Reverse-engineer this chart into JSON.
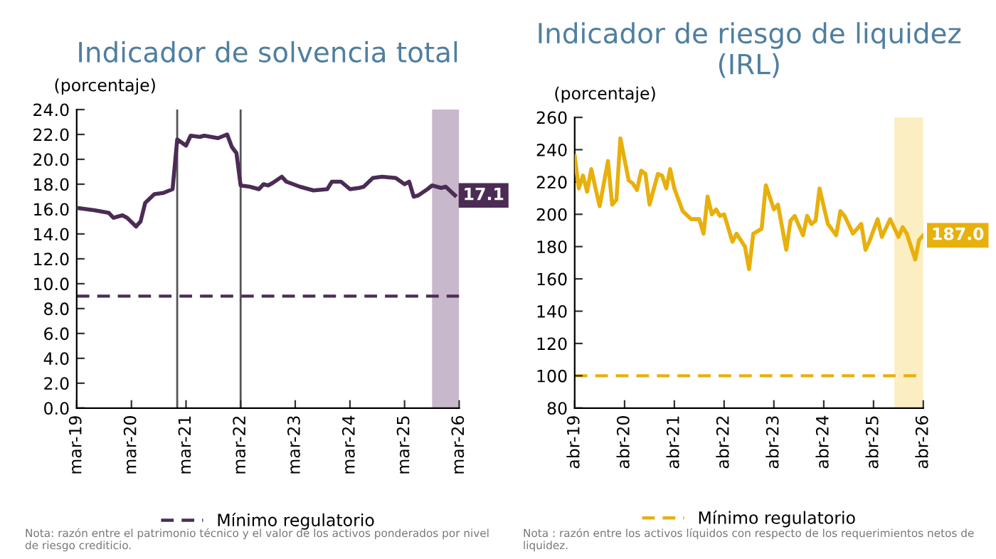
{
  "chart_data": [
    {
      "type": "line",
      "title": "Indicador de solvencia total",
      "ylabel": "(porcentaje)",
      "x": [
        "2019-03",
        "2019-07",
        "2019-10",
        "2019-11",
        "2020-01",
        "2020-02",
        "2020-04",
        "2020-05",
        "2020-06",
        "2020-08",
        "2020-10",
        "2020-12",
        "2021-01",
        "2021-03",
        "2021-04",
        "2021-06",
        "2021-07",
        "2021-10",
        "2021-12",
        "2022-01",
        "2022-02",
        "2022-03",
        "2022-05",
        "2022-07",
        "2022-08",
        "2022-09",
        "2022-10",
        "2022-12",
        "2023-01",
        "2023-04",
        "2023-07",
        "2023-10",
        "2023-11",
        "2024-01",
        "2024-03",
        "2024-05",
        "2024-06",
        "2024-08",
        "2024-10",
        "2025-01",
        "2025-03",
        "2025-04",
        "2025-05",
        "2025-06",
        "2025-08",
        "2025-09",
        "2025-11",
        "2025-12",
        "2026-02"
      ],
      "series": [
        {
          "color": "#4b2c55",
          "values": [
            16.1,
            15.9,
            15.7,
            15.3,
            15.5,
            15.3,
            14.6,
            15.0,
            16.5,
            17.2,
            17.3,
            17.6,
            21.6,
            21.1,
            21.9,
            21.8,
            21.9,
            21.7,
            22.0,
            21.0,
            20.5,
            17.9,
            17.8,
            17.6,
            18.0,
            17.9,
            18.1,
            18.6,
            18.2,
            17.8,
            17.5,
            17.6,
            18.2,
            18.2,
            17.6,
            17.7,
            17.8,
            18.5,
            18.6,
            18.5,
            18.0,
            18.2,
            17.0,
            17.1,
            17.6,
            17.9,
            17.7,
            17.8,
            17.1
          ],
          "value_labels": [
            null,
            null,
            null,
            null,
            null,
            null,
            null,
            null,
            null,
            null,
            null,
            null,
            null,
            null,
            null,
            null,
            null,
            null,
            null,
            null,
            null,
            null,
            null,
            null,
            null,
            null,
            null,
            null,
            null,
            null,
            null,
            null,
            null,
            null,
            null,
            null,
            null,
            null,
            null,
            null,
            null,
            null,
            null,
            null,
            null,
            null,
            null,
            null,
            "17.1"
          ]
        }
      ],
      "xlim": [
        "2019-03",
        "2026-03"
      ],
      "xticks": [
        {
          "value": "2019-03",
          "label": "mar-19"
        },
        {
          "value": "2020-03",
          "label": "mar-20"
        },
        {
          "value": "2021-03",
          "label": "mar-21"
        },
        {
          "value": "2022-03",
          "label": "mar-22"
        },
        {
          "value": "2023-03",
          "label": "mar-23"
        },
        {
          "value": "2024-03",
          "label": "mar-24"
        },
        {
          "value": "2025-03",
          "label": "mar-25"
        },
        {
          "value": "2026-03",
          "label": "mar-26"
        }
      ],
      "ylim": [
        0,
        24
      ],
      "yticks": [
        {
          "value": 0,
          "label": "0.0"
        },
        {
          "value": 2,
          "label": "2.0"
        },
        {
          "value": 4,
          "label": "4.0"
        },
        {
          "value": 6,
          "label": "6.0"
        },
        {
          "value": 8,
          "label": "8.0"
        },
        {
          "value": 10,
          "label": "10.0"
        },
        {
          "value": 12,
          "label": "12.0"
        },
        {
          "value": 14,
          "label": "14.0"
        },
        {
          "value": 16,
          "label": "16.0"
        },
        {
          "value": 18,
          "label": "18.0"
        },
        {
          "value": 20,
          "label": "20.0"
        },
        {
          "value": 22,
          "label": "22.0"
        },
        {
          "value": 24,
          "label": "24.0"
        }
      ],
      "ref_lines": [
        {
          "axis": "y",
          "value": 9,
          "label": "Mínimo regulatorio",
          "color": "#4b2c55",
          "line_style": "dashed"
        },
        {
          "axis": "x",
          "value": "2021-01",
          "color": "#555555",
          "line_style": "solid"
        },
        {
          "axis": "x",
          "value": "2022-03",
          "color": "#555555",
          "line_style": "solid"
        }
      ],
      "bands": [
        {
          "axis": "x",
          "from": "2025-09",
          "to": "2026-03",
          "color": "#c8b8cc"
        }
      ],
      "grid": false,
      "legend": "bottom",
      "annotations": [
        "Nota: razón entre el patrimonio técnico y el valor de los activos ponderados por nivel de riesgo crediticio."
      ]
    },
    {
      "type": "line",
      "title": "Indicador de riesgo de liquidez (IRL)",
      "ylabel": "(porcentaje)",
      "x": [
        "2019-04",
        "2019-05",
        "2019-06",
        "2019-07",
        "2019-08",
        "2019-09",
        "2019-10",
        "2019-12",
        "2020-01",
        "2020-02",
        "2020-03",
        "2020-05",
        "2020-06",
        "2020-07",
        "2020-08",
        "2020-09",
        "2020-10",
        "2020-12",
        "2021-01",
        "2021-02",
        "2021-03",
        "2021-04",
        "2021-06",
        "2021-08",
        "2021-10",
        "2021-11",
        "2021-12",
        "2022-01",
        "2022-02",
        "2022-03",
        "2022-04",
        "2022-06",
        "2022-07",
        "2022-09",
        "2022-10",
        "2022-11",
        "2023-01",
        "2023-02",
        "2023-04",
        "2023-05",
        "2023-07",
        "2023-08",
        "2023-09",
        "2023-11",
        "2023-12",
        "2024-01",
        "2024-02",
        "2024-03",
        "2024-05",
        "2024-07",
        "2024-08",
        "2024-09",
        "2024-11",
        "2025-01",
        "2025-02",
        "2025-03",
        "2025-05",
        "2025-06",
        "2025-08",
        "2025-10",
        "2025-11",
        "2025-12",
        "2026-02",
        "2026-03",
        "2026-04"
      ],
      "series": [
        {
          "color": "#e8b00c",
          "values": [
            236,
            216,
            224,
            214,
            228,
            216,
            205,
            233,
            206,
            209,
            247,
            221,
            219,
            215,
            227,
            225,
            206,
            225,
            224,
            216,
            228,
            216,
            202,
            197,
            197,
            188,
            211,
            200,
            203,
            199,
            200,
            183,
            188,
            180,
            166,
            188,
            191,
            218,
            203,
            206,
            178,
            196,
            199,
            187,
            199,
            194,
            196,
            216,
            194,
            187,
            202,
            199,
            188,
            194,
            178,
            183,
            197,
            186,
            197,
            186,
            192,
            188,
            172,
            184,
            187.0
          ],
          "value_labels": [
            null,
            null,
            null,
            null,
            null,
            null,
            null,
            null,
            null,
            null,
            null,
            null,
            null,
            null,
            null,
            null,
            null,
            null,
            null,
            null,
            null,
            null,
            null,
            null,
            null,
            null,
            null,
            null,
            null,
            null,
            null,
            null,
            null,
            null,
            null,
            null,
            null,
            null,
            null,
            null,
            null,
            null,
            null,
            null,
            null,
            null,
            null,
            null,
            null,
            null,
            null,
            null,
            null,
            null,
            null,
            null,
            null,
            null,
            null,
            null,
            null,
            null,
            null,
            null,
            "187.0"
          ]
        }
      ],
      "xlim": [
        "2019-04",
        "2026-04"
      ],
      "xticks": [
        {
          "value": "2019-04",
          "label": "abr-19"
        },
        {
          "value": "2020-04",
          "label": "abr-20"
        },
        {
          "value": "2021-04",
          "label": "abr-21"
        },
        {
          "value": "2022-04",
          "label": "abr-22"
        },
        {
          "value": "2023-04",
          "label": "abr-23"
        },
        {
          "value": "2024-04",
          "label": "abr-24"
        },
        {
          "value": "2025-04",
          "label": "abr-25"
        },
        {
          "value": "2026-04",
          "label": "abr-26"
        }
      ],
      "ylim": [
        80,
        260
      ],
      "yticks": [
        80,
        100,
        120,
        140,
        160,
        180,
        200,
        220,
        240,
        260
      ],
      "ref_lines": [
        {
          "axis": "y",
          "value": 100,
          "label": "Mínimo regulatorio",
          "color": "#e8b00c",
          "line_style": "dashed"
        }
      ],
      "bands": [
        {
          "axis": "x",
          "from": "2025-09",
          "to": "2026-04",
          "color": "#fbeec2"
        }
      ],
      "grid": false,
      "legend": "bottom",
      "annotations": [
        "Nota : razón entre los activos líquidos con respecto de los requerimientos netos de liquidez."
      ]
    }
  ]
}
